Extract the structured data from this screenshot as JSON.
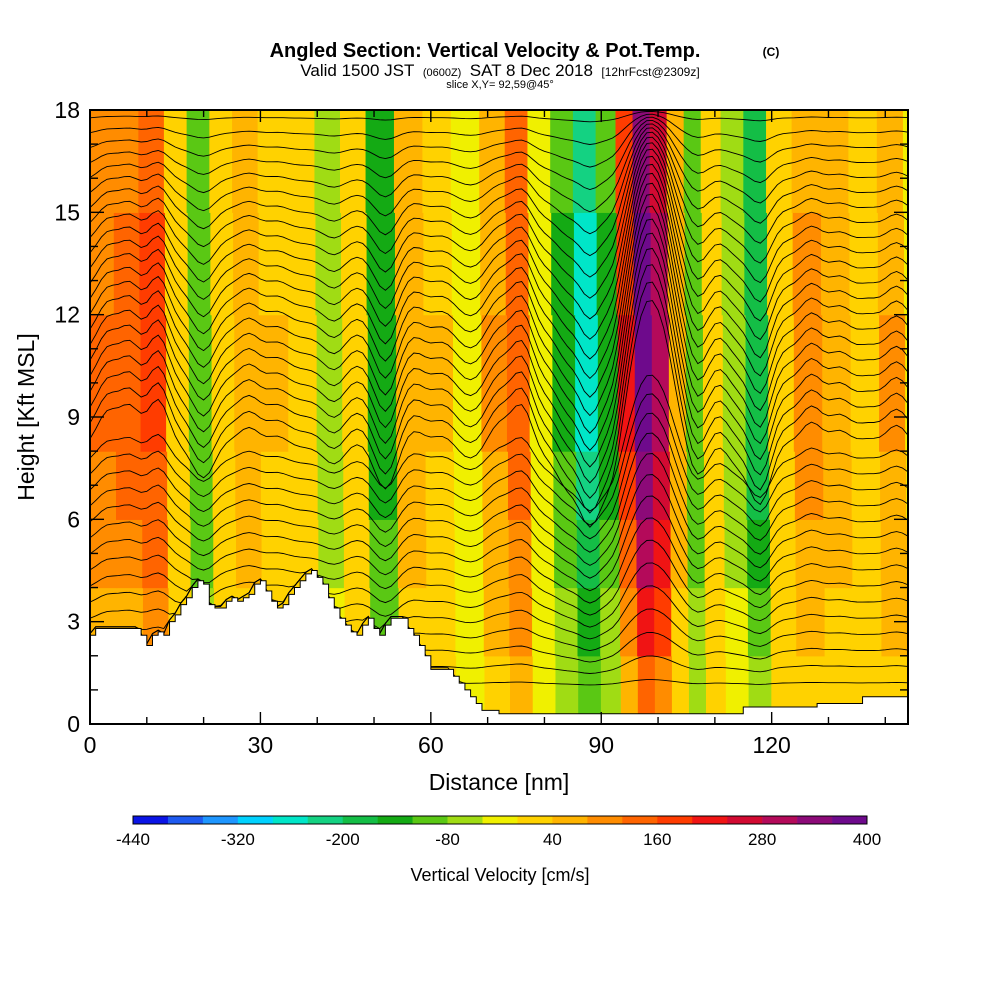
{
  "chart_data": {
    "type": "heatmap",
    "title": "Angled Section: Vertical Velocity & Pot.Temp.",
    "title_unit": "(C)",
    "subtitle_parts": [
      "Valid 1500 JST",
      "(0600Z)",
      "SAT 8 Dec 2018",
      "[12hrFcst@2309z]"
    ],
    "slice_label": "slice X,Y= 92,59@45°",
    "xlabel": "Distance [nm]",
    "ylabel": "Height [Kft MSL]",
    "xlim": [
      0,
      144
    ],
    "ylim": [
      0,
      18
    ],
    "x_major_ticks": [
      0,
      30,
      60,
      90,
      120
    ],
    "x_tick_labels": [
      "0",
      "30",
      "60",
      "90",
      "120"
    ],
    "y_major_ticks": [
      0,
      3,
      6,
      9,
      12,
      15,
      18
    ],
    "y_tick_labels": [
      "0",
      "3",
      "6",
      "9",
      "12",
      "15",
      "18"
    ],
    "colorbar": {
      "label": "Vertical Velocity [cm/s]",
      "tick_labels": [
        "-440",
        "-320",
        "-200",
        "-80",
        "40",
        "160",
        "280",
        "400"
      ],
      "colors": [
        "#0a14e6",
        "#1e5af0",
        "#1e96ff",
        "#00d2ff",
        "#00e6c8",
        "#14d282",
        "#14be46",
        "#14aa14",
        "#5ac814",
        "#a0dc14",
        "#f0f000",
        "#ffd200",
        "#ffb400",
        "#ff8c00",
        "#ff6400",
        "#ff3c00",
        "#f01414",
        "#d20a32",
        "#b40a5a",
        "#8c0a78",
        "#6e0a8c"
      ]
    },
    "velocity_columns": [
      {
        "x": 3,
        "v": 120
      },
      {
        "x": 7,
        "v": 140
      },
      {
        "x": 12,
        "v": 170
      },
      {
        "x": 16,
        "v": 0
      },
      {
        "x": 20,
        "v": -110
      },
      {
        "x": 24,
        "v": 20
      },
      {
        "x": 28,
        "v": 70
      },
      {
        "x": 33,
        "v": 40
      },
      {
        "x": 38,
        "v": 0
      },
      {
        "x": 43,
        "v": -60
      },
      {
        "x": 47,
        "v": 20
      },
      {
        "x": 52,
        "v": -150
      },
      {
        "x": 57,
        "v": 60
      },
      {
        "x": 62,
        "v": 40
      },
      {
        "x": 67,
        "v": -40
      },
      {
        "x": 72,
        "v": 80
      },
      {
        "x": 76,
        "v": 150
      },
      {
        "x": 80,
        "v": -30
      },
      {
        "x": 84,
        "v": -130
      },
      {
        "x": 88,
        "v": -260
      },
      {
        "x": 92,
        "v": -140
      },
      {
        "x": 95,
        "v": 200
      },
      {
        "x": 98,
        "v": 390
      },
      {
        "x": 101,
        "v": 310
      },
      {
        "x": 104,
        "v": 60
      },
      {
        "x": 107,
        "v": -120
      },
      {
        "x": 110,
        "v": 30
      },
      {
        "x": 114,
        "v": -60
      },
      {
        "x": 118,
        "v": -200
      },
      {
        "x": 122,
        "v": 20
      },
      {
        "x": 127,
        "v": 90
      },
      {
        "x": 132,
        "v": 60
      },
      {
        "x": 137,
        "v": 30
      },
      {
        "x": 142,
        "v": 80
      }
    ],
    "terrain": [
      [
        0,
        2.6
      ],
      [
        1,
        2.8
      ],
      [
        4,
        2.8
      ],
      [
        9,
        2.6
      ],
      [
        10,
        2.3
      ],
      [
        11,
        2.6
      ],
      [
        12,
        2.7
      ],
      [
        13,
        2.6
      ],
      [
        14,
        3.0
      ],
      [
        15,
        3.2
      ],
      [
        16,
        3.5
      ],
      [
        17,
        3.7
      ],
      [
        18,
        4.0
      ],
      [
        19,
        4.2
      ],
      [
        20,
        4.1
      ],
      [
        21,
        3.5
      ],
      [
        22,
        3.4
      ],
      [
        23,
        3.4
      ],
      [
        24,
        3.6
      ],
      [
        25,
        3.7
      ],
      [
        26,
        3.6
      ],
      [
        27,
        3.7
      ],
      [
        28,
        3.8
      ],
      [
        29,
        4.1
      ],
      [
        30,
        4.2
      ],
      [
        31,
        3.9
      ],
      [
        32,
        3.6
      ],
      [
        33,
        3.4
      ],
      [
        34,
        3.5
      ],
      [
        35,
        3.8
      ],
      [
        36,
        4.0
      ],
      [
        37,
        4.2
      ],
      [
        38,
        4.4
      ],
      [
        39,
        4.5
      ],
      [
        40,
        4.3
      ],
      [
        41,
        4.1
      ],
      [
        42,
        3.7
      ],
      [
        43,
        3.4
      ],
      [
        44,
        3.1
      ],
      [
        45,
        2.9
      ],
      [
        46,
        2.7
      ],
      [
        47,
        2.6
      ],
      [
        48,
        2.9
      ],
      [
        49,
        3.1
      ],
      [
        50,
        2.8
      ],
      [
        51,
        2.6
      ],
      [
        52,
        2.9
      ],
      [
        53,
        3.1
      ],
      [
        55,
        3.1
      ],
      [
        56,
        2.8
      ],
      [
        57,
        2.6
      ],
      [
        58,
        2.3
      ],
      [
        59,
        2.0
      ],
      [
        60,
        1.6
      ],
      [
        63,
        1.6
      ],
      [
        64,
        1.4
      ],
      [
        65,
        1.2
      ],
      [
        66,
        1.0
      ],
      [
        67,
        0.8
      ],
      [
        68,
        0.6
      ],
      [
        69,
        0.4
      ],
      [
        72,
        0.3
      ],
      [
        90,
        0.3
      ],
      [
        114,
        0.3
      ],
      [
        115,
        0.5
      ],
      [
        120,
        0.5
      ],
      [
        128,
        0.6
      ],
      [
        136,
        0.8
      ],
      [
        144,
        1.0
      ]
    ]
  }
}
